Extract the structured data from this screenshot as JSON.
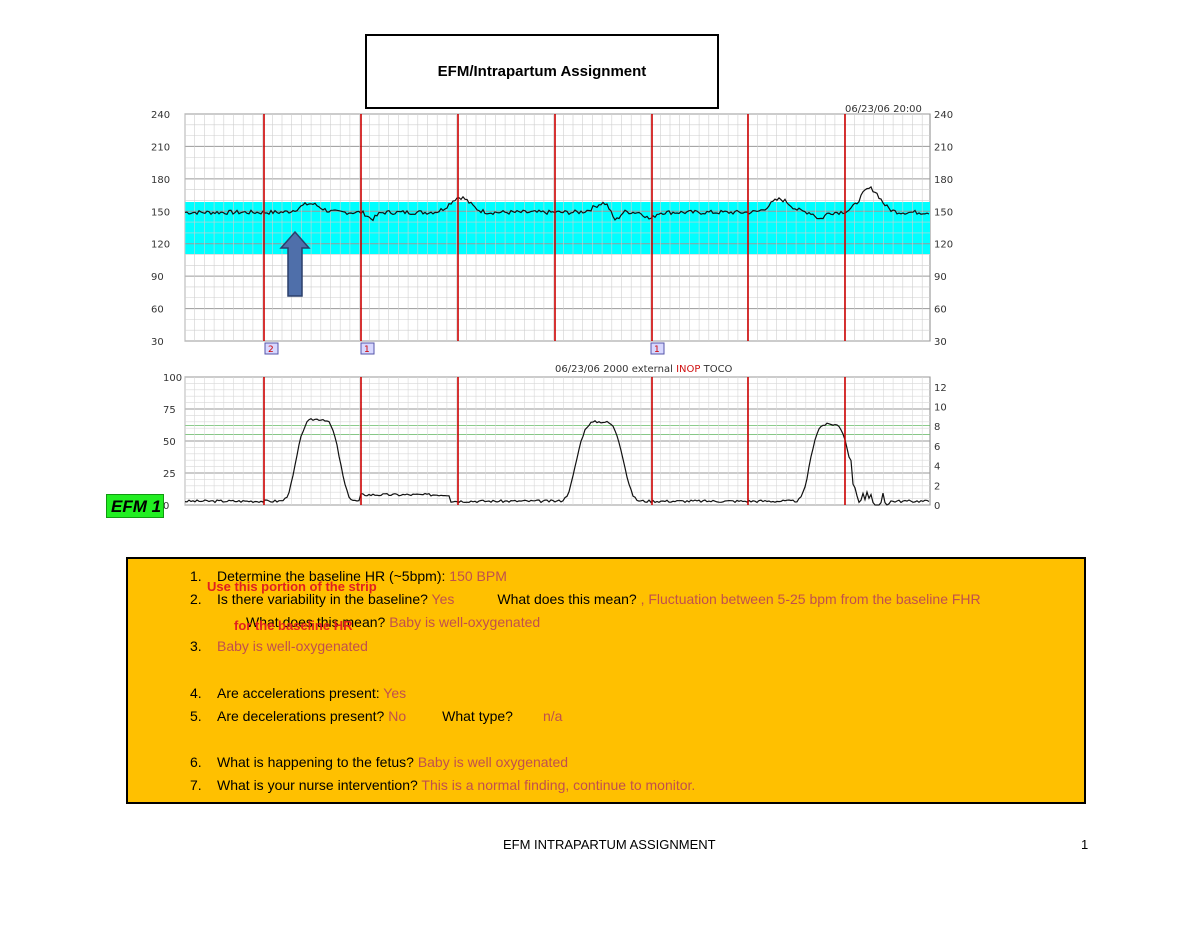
{
  "document": {
    "title": "EFM/Intrapartum Assignment",
    "efm_label": "EFM 1",
    "footer_text": "EFM INTRAPARTUM ASSIGNMENT",
    "page_number": "1"
  },
  "strip": {
    "fhr_axis_ticks": [
      "240",
      "210",
      "180",
      "150",
      "120",
      "90",
      "60",
      "30"
    ],
    "fhr_left_ticks": [
      "240",
      "210",
      "180",
      "150",
      "120",
      "90",
      "60",
      "30"
    ],
    "toco_left_ticks": [
      "100",
      "75",
      "50",
      "25",
      "0"
    ],
    "toco_right_ticks": [
      "12",
      "10",
      "8",
      "6",
      "4",
      "2",
      "0"
    ],
    "header_date": "06/23/06 20:00",
    "status_prefix": "06/23/06 2000  external",
    "status_inop": "INOP",
    "status_suffix": "TOCO",
    "markers": [
      "2",
      "1",
      "1"
    ],
    "baseline_band_color": "#00ffff",
    "divider_color": "#cc0000"
  },
  "annotations": {
    "strip_note_line1": "Use this portion of the strip",
    "strip_note_line2": "for the baseline HR"
  },
  "questions": [
    {
      "num": "1.",
      "text": "Determine the baseline HR (~5bpm): ",
      "answer": "150 BPM"
    },
    {
      "num": "2.",
      "text": "Is there variability in the baseline? ",
      "answer": "Yes",
      "text2": "What does this mean? ",
      "answer2": ", Fluctuation between 5-25 bpm from the baseline FHR"
    },
    {
      "num": "",
      "text": "What does this mean? ",
      "answer": "Baby is well-oxygenated"
    },
    {
      "num": "3.",
      "text": "",
      "answer": "Baby is well-oxygenated"
    },
    {
      "num": "4.",
      "text": "Are accelerations present: ",
      "answer": "Yes"
    },
    {
      "num": "5.",
      "text": "Are decelerations present? ",
      "answer": "No",
      "text2": "What type?",
      "answer2": "n/a"
    },
    {
      "num": "6.",
      "text": "What is happening to the fetus? ",
      "answer": "Baby is well oxygenated"
    },
    {
      "num": "7.",
      "text": "What is your nurse intervention? ",
      "answer": "This is a normal finding, continue to monitor."
    }
  ]
}
